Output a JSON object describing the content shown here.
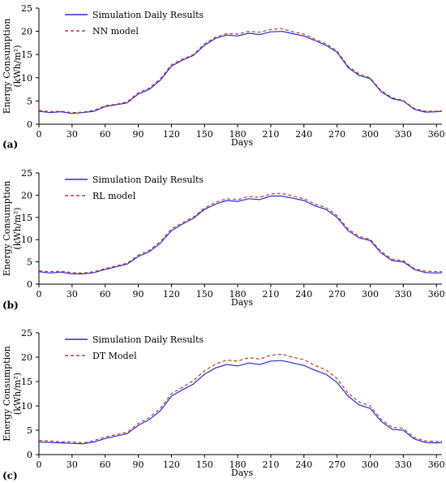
{
  "chart_data": [
    {
      "type": "line",
      "panel_label": "(a)",
      "xlabel": "Days",
      "ylabel": "Energy Consumption",
      "ylabel_unit": "(kWh/m²)",
      "xlim": [
        0,
        365
      ],
      "ylim": [
        0,
        25
      ],
      "xticks": [
        0,
        30,
        60,
        90,
        120,
        150,
        180,
        210,
        240,
        270,
        300,
        330,
        360
      ],
      "yticks": [
        0,
        5,
        10,
        15,
        20,
        25
      ],
      "grid": false,
      "legend": "top-left",
      "series": [
        {
          "name": "Simulation Daily Results",
          "color": "#2b2bd4",
          "style": "solid",
          "x": [
            0,
            10,
            20,
            30,
            40,
            50,
            60,
            70,
            80,
            90,
            100,
            110,
            120,
            130,
            140,
            150,
            160,
            170,
            180,
            190,
            200,
            210,
            220,
            230,
            240,
            250,
            260,
            270,
            280,
            290,
            300,
            310,
            320,
            330,
            340,
            350,
            360,
            365
          ],
          "values": [
            2.8,
            2.5,
            2.7,
            2.3,
            2.5,
            2.8,
            3.8,
            4.2,
            4.6,
            6.5,
            7.5,
            9.5,
            12.5,
            13.8,
            14.8,
            17.0,
            18.5,
            19.2,
            19.0,
            19.6,
            19.3,
            19.9,
            20.0,
            19.5,
            19.0,
            18.0,
            17.0,
            15.5,
            12.2,
            10.5,
            9.8,
            7.0,
            5.5,
            5.0,
            3.2,
            2.6,
            2.7,
            2.8
          ]
        },
        {
          "name": "NN model",
          "color": "#c0392b",
          "style": "dashed",
          "x": [
            0,
            10,
            20,
            30,
            40,
            50,
            60,
            70,
            80,
            90,
            100,
            110,
            120,
            130,
            140,
            150,
            160,
            170,
            180,
            190,
            200,
            210,
            220,
            230,
            240,
            250,
            260,
            270,
            280,
            290,
            300,
            310,
            320,
            330,
            340,
            350,
            360,
            365
          ],
          "values": [
            3.0,
            2.7,
            2.8,
            2.5,
            2.6,
            3.0,
            4.0,
            4.3,
            4.8,
            6.8,
            7.8,
            9.8,
            12.8,
            14.0,
            15.0,
            17.3,
            18.8,
            19.5,
            19.4,
            20.0,
            19.8,
            20.4,
            20.6,
            19.9,
            19.4,
            18.3,
            17.3,
            15.8,
            12.5,
            10.8,
            10.0,
            7.2,
            5.7,
            5.1,
            3.4,
            2.8,
            2.8,
            2.9
          ]
        }
      ]
    },
    {
      "type": "line",
      "panel_label": "(b)",
      "xlabel": "Days",
      "ylabel": "Energy Consumption",
      "ylabel_unit": "(kWh/m²)",
      "xlim": [
        0,
        365
      ],
      "ylim": [
        0,
        25
      ],
      "xticks": [
        0,
        30,
        60,
        90,
        120,
        150,
        180,
        210,
        240,
        270,
        300,
        330,
        360
      ],
      "yticks": [
        0,
        5,
        10,
        15,
        20,
        25
      ],
      "grid": false,
      "legend": "top-left",
      "series": [
        {
          "name": "Simulation Daily Results",
          "color": "#2b2bd4",
          "style": "solid",
          "x": [
            0,
            10,
            20,
            30,
            40,
            50,
            60,
            70,
            80,
            90,
            100,
            110,
            120,
            130,
            140,
            150,
            160,
            170,
            180,
            190,
            200,
            210,
            220,
            230,
            240,
            250,
            260,
            270,
            280,
            290,
            300,
            310,
            320,
            330,
            340,
            350,
            360,
            365
          ],
          "values": [
            2.8,
            2.5,
            2.7,
            2.3,
            2.3,
            2.6,
            3.3,
            3.9,
            4.5,
            6.2,
            7.3,
            9.2,
            12.0,
            13.5,
            14.8,
            16.8,
            18.0,
            18.8,
            18.6,
            19.2,
            19.0,
            19.8,
            19.8,
            19.3,
            18.8,
            17.6,
            16.8,
            15.0,
            12.0,
            10.4,
            9.8,
            7.0,
            5.3,
            5.0,
            3.3,
            2.6,
            2.5,
            2.6
          ]
        },
        {
          "name": "RL model",
          "color": "#c0392b",
          "style": "dashed",
          "x": [
            0,
            10,
            20,
            30,
            40,
            50,
            60,
            70,
            80,
            90,
            100,
            110,
            120,
            130,
            140,
            150,
            160,
            170,
            180,
            190,
            200,
            210,
            220,
            230,
            240,
            250,
            260,
            270,
            280,
            290,
            300,
            310,
            320,
            330,
            340,
            350,
            360,
            365
          ],
          "values": [
            3.0,
            2.8,
            2.9,
            2.6,
            2.5,
            2.8,
            3.5,
            4.1,
            4.7,
            6.5,
            7.6,
            9.6,
            12.4,
            13.8,
            15.1,
            17.1,
            18.4,
            19.2,
            19.0,
            19.7,
            19.5,
            20.3,
            20.4,
            19.8,
            19.2,
            18.0,
            17.2,
            15.4,
            12.4,
            10.7,
            10.1,
            7.3,
            5.6,
            5.3,
            3.5,
            2.9,
            2.8,
            2.8
          ]
        }
      ]
    },
    {
      "type": "line",
      "panel_label": "(c)",
      "xlabel": "Days",
      "ylabel": "Energy Consumption",
      "ylabel_unit": "(kWh/m²)",
      "xlim": [
        0,
        365
      ],
      "ylim": [
        0,
        25
      ],
      "xticks": [
        0,
        30,
        60,
        90,
        120,
        150,
        180,
        210,
        240,
        270,
        300,
        330,
        360
      ],
      "yticks": [
        0,
        5,
        10,
        15,
        20,
        25
      ],
      "grid": false,
      "legend": "top-left",
      "series": [
        {
          "name": "Simulation Daily Results",
          "color": "#2b2bd4",
          "style": "solid",
          "x": [
            0,
            10,
            20,
            30,
            40,
            50,
            60,
            70,
            80,
            90,
            100,
            110,
            120,
            130,
            140,
            150,
            160,
            170,
            180,
            190,
            200,
            210,
            220,
            230,
            240,
            250,
            260,
            270,
            280,
            290,
            300,
            310,
            320,
            330,
            340,
            350,
            360,
            365
          ],
          "values": [
            2.6,
            2.5,
            2.4,
            2.3,
            2.2,
            2.6,
            3.3,
            3.8,
            4.3,
            6.0,
            7.2,
            9.0,
            12.0,
            13.3,
            14.5,
            16.5,
            17.8,
            18.5,
            18.2,
            18.8,
            18.5,
            19.2,
            19.3,
            18.8,
            18.3,
            17.3,
            16.5,
            14.8,
            12.0,
            10.2,
            9.5,
            6.8,
            5.2,
            5.0,
            3.2,
            2.5,
            2.4,
            2.5
          ]
        },
        {
          "name": "DT Model",
          "color": "#c0392b",
          "style": "dashed",
          "x": [
            0,
            10,
            20,
            30,
            40,
            50,
            60,
            70,
            80,
            90,
            100,
            110,
            120,
            130,
            140,
            150,
            160,
            170,
            180,
            190,
            200,
            210,
            220,
            230,
            240,
            250,
            260,
            270,
            280,
            290,
            300,
            310,
            320,
            330,
            340,
            350,
            360,
            365
          ],
          "values": [
            2.9,
            2.8,
            2.6,
            2.6,
            2.4,
            2.9,
            3.6,
            4.1,
            4.6,
            6.4,
            7.6,
            9.5,
            12.5,
            13.8,
            15.2,
            17.2,
            18.6,
            19.4,
            19.2,
            19.9,
            19.6,
            20.4,
            20.6,
            20.0,
            19.5,
            18.3,
            17.4,
            15.6,
            12.6,
            10.8,
            10.0,
            7.2,
            5.6,
            5.4,
            3.5,
            2.8,
            2.7,
            2.8
          ]
        }
      ]
    }
  ]
}
